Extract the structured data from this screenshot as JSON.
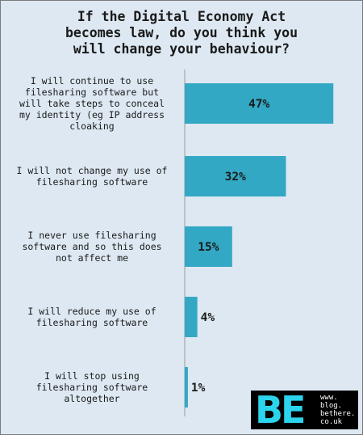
{
  "chart_data": {
    "type": "bar",
    "orientation": "horizontal",
    "title": "If the Digital Economy Act becomes law, do you think you will change your behaviour?",
    "title_lines": [
      "If the Digital Economy Act",
      "becomes law, do you think you",
      "will change your behaviour?"
    ],
    "categories": [
      "I will continue to use filesharing software but will take steps to conceal my identity (eg IP address cloaking",
      "I will not change my use of filesharing software",
      "I never use filesharing software and so this does not affect me",
      "I will reduce my use of filesharing software",
      "I will stop using filesharing software altogether"
    ],
    "category_lines": [
      [
        "I will continue to use",
        "filesharing software but",
        "will take steps to conceal",
        "my identity (eg IP address",
        "cloaking"
      ],
      [
        "I will not change my use of",
        "filesharing software"
      ],
      [
        "I never use filesharing",
        "software and so this does",
        "not affect me"
      ],
      [
        "I will reduce my use of",
        "filesharing software"
      ],
      [
        "I will stop using",
        "filesharing software",
        "altogether"
      ]
    ],
    "values": [
      47,
      32,
      15,
      4,
      1
    ],
    "value_labels": [
      "47%",
      "32%",
      "15%",
      "4%",
      "1%"
    ],
    "unit": "%",
    "xlim": [
      0,
      50
    ],
    "bar_color": "#33a8c4",
    "background_color": "#dde8f2",
    "grid": false
  },
  "brand": {
    "logo_text": "BE",
    "url_lines": [
      "www.",
      "blog.",
      "bethere.",
      "co.uk"
    ],
    "background_color": "#000000",
    "logo_color": "#2bd4ec"
  }
}
